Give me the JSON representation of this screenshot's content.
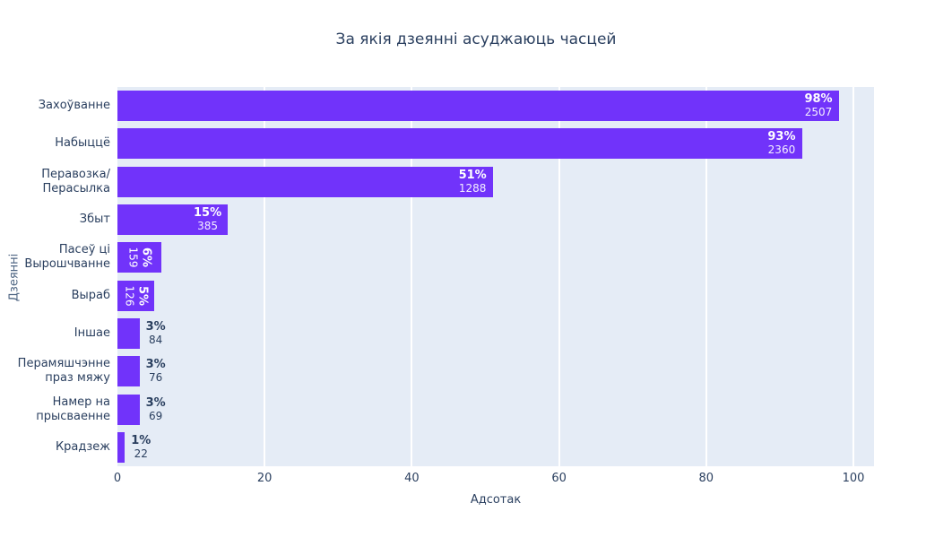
{
  "title": "За якія дзеянні асуджаюць часцей",
  "chart_data": {
    "type": "bar",
    "orientation": "horizontal",
    "title": "За якія дзеянні асуджаюць часцей",
    "xlabel": "Адсотак",
    "ylabel": "Дзеянні",
    "xlim": [
      0,
      103
    ],
    "xticks": [
      0,
      20,
      40,
      60,
      80,
      100
    ],
    "grid": true,
    "legend": "none",
    "colors": {
      "bar": "#7133fa",
      "plot_background": "#e5ecf6",
      "gridline": "#ffffff",
      "text_dark": "#2a3f5f",
      "text_inside": "#ffffff"
    },
    "categories": [
      "Захоўванне",
      "Набыццё",
      "Перавозка/Перасылка",
      "Збыт",
      "Пасеў ці Вырошчванне",
      "Выраб",
      "Іншае",
      "Перамяшчэнне праз мяжу",
      "Намер на прысваенне",
      "Крадзеж"
    ],
    "values_percent": [
      98,
      93,
      51,
      15,
      6,
      5,
      3,
      3,
      3,
      1
    ],
    "values_count": [
      2507,
      2360,
      1288,
      385,
      159,
      126,
      84,
      76,
      69,
      22
    ],
    "bars": [
      {
        "label_lines": [
          "Захоўванне"
        ],
        "percent": 98,
        "percent_label": "98%",
        "count": "2507",
        "text_position": "inside"
      },
      {
        "label_lines": [
          "Набыццё"
        ],
        "percent": 93,
        "percent_label": "93%",
        "count": "2360",
        "text_position": "inside"
      },
      {
        "label_lines": [
          "Перавозка/",
          "Перасылка"
        ],
        "percent": 51,
        "percent_label": "51%",
        "count": "1288",
        "text_position": "inside"
      },
      {
        "label_lines": [
          "Збыт"
        ],
        "percent": 15,
        "percent_label": "15%",
        "count": "385",
        "text_position": "inside"
      },
      {
        "label_lines": [
          "Пасеў ці",
          "Вырошчванне"
        ],
        "percent": 6,
        "percent_label": "6%",
        "count": "159",
        "text_position": "inside-rotated"
      },
      {
        "label_lines": [
          "Выраб"
        ],
        "percent": 5,
        "percent_label": "5%",
        "count": "126",
        "text_position": "inside-rotated"
      },
      {
        "label_lines": [
          "Іншае"
        ],
        "percent": 3,
        "percent_label": "3%",
        "count": "84",
        "text_position": "outside"
      },
      {
        "label_lines": [
          "Перамяшчэнне",
          "праз мяжу"
        ],
        "percent": 3,
        "percent_label": "3%",
        "count": "76",
        "text_position": "outside"
      },
      {
        "label_lines": [
          "Намер на",
          "прысваенне"
        ],
        "percent": 3,
        "percent_label": "3%",
        "count": "69",
        "text_position": "outside"
      },
      {
        "label_lines": [
          "Крадзеж"
        ],
        "percent": 1,
        "percent_label": "1%",
        "count": "22",
        "text_position": "outside"
      }
    ]
  }
}
